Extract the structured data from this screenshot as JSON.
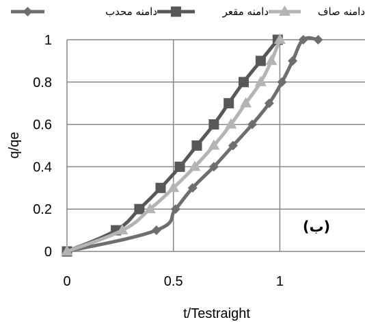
{
  "chart_data": {
    "type": "line",
    "xlabel": "t/Testraight",
    "ylabel": "q/qe",
    "xlim": [
      0,
      1.4
    ],
    "ylim": [
      0,
      1
    ],
    "x_ticks": [
      "0",
      "0.5",
      "1"
    ],
    "y_ticks": [
      "0",
      "0.2",
      "0.4",
      "0.6",
      "0.8",
      "1"
    ],
    "grid": true,
    "legend_position": "top",
    "annotation": "(ب)",
    "series": [
      {
        "name": "دامنه محدب",
        "marker": "diamond",
        "color": "#6e6e6e",
        "x": [
          0,
          0.42,
          0.51,
          0.59,
          0.69,
          0.78,
          0.87,
          0.95,
          1.01,
          1.06,
          1.11,
          1.18
        ],
        "y": [
          0,
          0.1,
          0.2,
          0.3,
          0.4,
          0.5,
          0.6,
          0.7,
          0.8,
          0.9,
          1.0,
          1.0
        ]
      },
      {
        "name": "دامنه مقعر",
        "marker": "square",
        "color": "#585858",
        "x": [
          0,
          0.23,
          0.34,
          0.44,
          0.53,
          0.61,
          0.69,
          0.76,
          0.83,
          0.91,
          0.99
        ],
        "y": [
          0,
          0.1,
          0.2,
          0.3,
          0.4,
          0.5,
          0.6,
          0.7,
          0.8,
          0.9,
          1.0
        ]
      },
      {
        "name": "دامنه صاف",
        "marker": "triangle",
        "color": "#b4b4b4",
        "x": [
          0,
          0.26,
          0.39,
          0.5,
          0.6,
          0.69,
          0.77,
          0.84,
          0.91,
          0.96,
          1.0
        ],
        "y": [
          0,
          0.1,
          0.2,
          0.3,
          0.4,
          0.5,
          0.6,
          0.7,
          0.8,
          0.9,
          1.0
        ]
      }
    ]
  }
}
